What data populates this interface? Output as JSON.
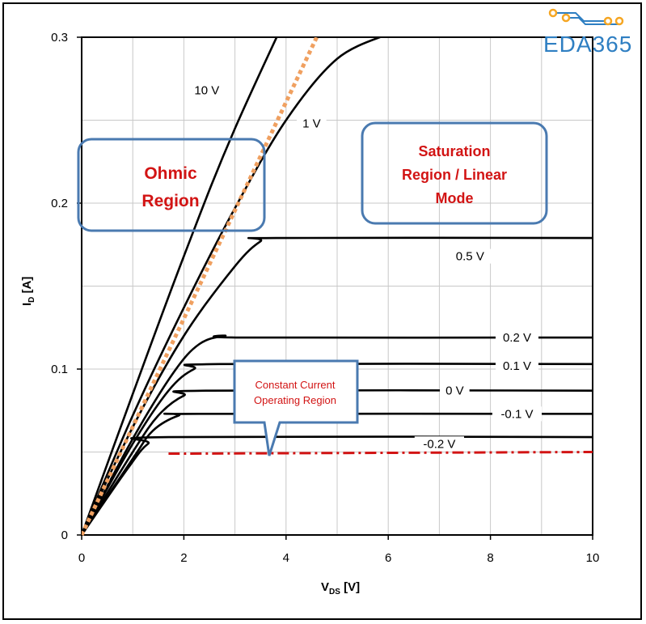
{
  "logo": {
    "text": "EDA365",
    "color": "#2f7fc2",
    "accent": "#f5a623"
  },
  "chart_data": {
    "type": "line",
    "title": "",
    "xlabel_main": "V",
    "xlabel_sub": "DS",
    "xlabel_unit": " [V]",
    "ylabel_main": "I",
    "ylabel_sub": "D",
    "ylabel_unit": " [A]",
    "xlim": [
      0,
      10
    ],
    "ylim": [
      0,
      0.3
    ],
    "x_ticks": [
      0,
      2,
      4,
      6,
      8,
      10
    ],
    "y_ticks": [
      0,
      0.1,
      0.2,
      0.3
    ],
    "x_tick_labels": [
      "0",
      "2",
      "4",
      "6",
      "8",
      "10"
    ],
    "y_tick_labels": [
      "0",
      "0.1",
      "0.2",
      "0.3"
    ],
    "grid": true,
    "series": [
      {
        "name": "10 V",
        "color": "#000000",
        "label_at": [
          2.45,
          0.268
        ],
        "points": [
          [
            0,
            0
          ],
          [
            1,
            0.085
          ],
          [
            2,
            0.168
          ],
          [
            3,
            0.245
          ],
          [
            4.5,
            0.345
          ]
        ]
      },
      {
        "name": "1 V",
        "color": "#000000",
        "label_at": [
          4.5,
          0.248
        ],
        "points": [
          [
            0,
            0
          ],
          [
            1,
            0.072
          ],
          [
            2,
            0.137
          ],
          [
            3,
            0.197
          ],
          [
            4,
            0.25
          ],
          [
            5,
            0.287
          ],
          [
            6,
            0.302
          ]
        ]
      },
      {
        "name": "0.5 V",
        "color": "#000000",
        "label_at": [
          7.6,
          0.168
        ],
        "points": [
          [
            0,
            0
          ],
          [
            1,
            0.065
          ],
          [
            2,
            0.12
          ],
          [
            3,
            0.162
          ],
          [
            3.5,
            0.177
          ],
          [
            3.8,
            0.179
          ],
          [
            10,
            0.179
          ]
        ]
      },
      {
        "name": "0.2 V",
        "color": "#000000",
        "label_at": [
          8.52,
          0.119
        ],
        "points": [
          [
            0,
            0
          ],
          [
            1,
            0.058
          ],
          [
            1.8,
            0.098
          ],
          [
            2.3,
            0.115
          ],
          [
            2.8,
            0.12
          ],
          [
            3.2,
            0.119
          ],
          [
            10,
            0.119
          ]
        ]
      },
      {
        "name": "0.1 V",
        "color": "#000000",
        "label_at": [
          8.52,
          0.102
        ],
        "points": [
          [
            0,
            0
          ],
          [
            1,
            0.055
          ],
          [
            1.7,
            0.087
          ],
          [
            2.2,
            0.1
          ],
          [
            2.7,
            0.103
          ],
          [
            10,
            0.103
          ]
        ]
      },
      {
        "name": "0 V",
        "color": "#000000",
        "label_at": [
          7.3,
          0.087
        ],
        "points": [
          [
            0,
            0
          ],
          [
            1,
            0.05
          ],
          [
            1.5,
            0.072
          ],
          [
            2,
            0.084
          ],
          [
            2.5,
            0.087
          ],
          [
            10,
            0.087
          ]
        ]
      },
      {
        "name": "-0.1 V",
        "color": "#000000",
        "label_at": [
          8.52,
          0.073
        ],
        "points": [
          [
            0,
            0
          ],
          [
            1,
            0.046
          ],
          [
            1.4,
            0.063
          ],
          [
            1.9,
            0.072
          ],
          [
            2.3,
            0.073
          ],
          [
            10,
            0.073
          ]
        ]
      },
      {
        "name": "-0.2 V",
        "color": "#000000",
        "label_at": [
          7.0,
          0.055
        ],
        "points": [
          [
            0,
            0
          ],
          [
            0.9,
            0.04
          ],
          [
            1.3,
            0.055
          ],
          [
            1.7,
            0.059
          ],
          [
            10,
            0.059
          ]
        ]
      },
      {
        "name": "",
        "color": "#d21414",
        "style": "dashdot",
        "points": [
          [
            1.7,
            0.049
          ],
          [
            10,
            0.05
          ]
        ]
      },
      {
        "name": "",
        "color": "#f0a060",
        "style": "dotted",
        "points": [
          [
            0,
            0
          ],
          [
            4.6,
            0.3
          ]
        ]
      }
    ],
    "annotations": [
      {
        "text": [
          "Ohmic",
          "Region"
        ],
        "color": "#d21414",
        "box_color": "#4a7ab0"
      },
      {
        "text": [
          "Saturation",
          "Region / Linear",
          "Mode"
        ],
        "color": "#d21414",
        "box_color": "#4a7ab0"
      },
      {
        "text": [
          "Constant Current",
          "Operating Region"
        ],
        "color": "#d21414",
        "box_color": "#4a7ab0"
      }
    ]
  }
}
